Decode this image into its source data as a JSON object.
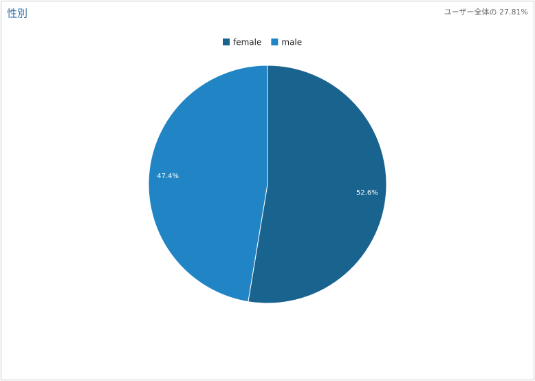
{
  "chart_data": {
    "type": "pie",
    "title": "性別",
    "subtitle": "ユーザー全体の 27.81%",
    "categories": [
      "female",
      "male"
    ],
    "values": [
      52.6,
      47.4
    ],
    "value_labels": [
      "52.6%",
      "47.4%"
    ],
    "colors": [
      "#19638f",
      "#2185c5"
    ],
    "legend": "top"
  }
}
